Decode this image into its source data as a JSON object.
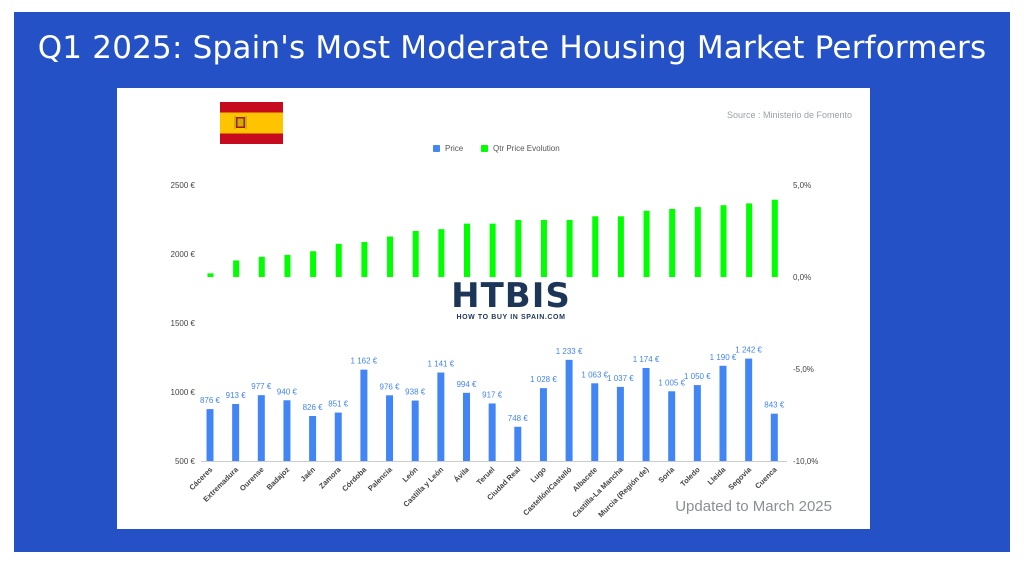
{
  "page": {
    "title": "Q1 2025: Spain's Most Moderate Housing Market Performers",
    "source": "Source : Ministerio de Fomento",
    "updated": "Updated to March 2025",
    "logo": {
      "text": "HTBIS",
      "tagline": "HOW TO BUY IN SPAIN.COM"
    },
    "colors": {
      "background": "#2452c6",
      "price": "#4285f4",
      "qtr": "#00ff00",
      "flag_red": "#c60b1e",
      "flag_yellow": "#ffc400"
    }
  },
  "chart_data": {
    "type": "bar",
    "categories": [
      "Cáceres",
      "Extremadura",
      "Ourense",
      "Badajoz",
      "Jaén",
      "Zamora",
      "Córdoba",
      "Palencia",
      "León",
      "Castilla y León",
      "Ávila",
      "Teruel",
      "Ciudad Real",
      "Lugo",
      "Castellón/Castelló",
      "Albacete",
      "Castilla-La Mancha",
      "Murcia (Región de)",
      "Soria",
      "Toledo",
      "Lleida",
      "Segovia",
      "Cuenca"
    ],
    "legend": {
      "position": "top",
      "entries": [
        "Price",
        "Qtr Price Evolution"
      ]
    },
    "series": [
      {
        "name": "Price",
        "axis": "left",
        "values": [
          876,
          913,
          977,
          940,
          826,
          851,
          1162,
          976,
          938,
          1141,
          994,
          917,
          748,
          1028,
          1233,
          1063,
          1037,
          1174,
          1005,
          1050,
          1190,
          1242,
          843
        ],
        "labels": [
          "876 €",
          "913 €",
          "977 €",
          "940 €",
          "826 €",
          "851 €",
          "1 162 €",
          "976 €",
          "938 €",
          "1 141 €",
          "994 €",
          "917 €",
          "748 €",
          "1 028 €",
          "1 233 €",
          "1 063 €",
          "1 037 €",
          "1 174 €",
          "1 005 €",
          "1 050 €",
          "1 190 €",
          "1 242 €",
          "843 €"
        ]
      },
      {
        "name": "Qtr Price Evolution",
        "axis": "right",
        "values": [
          0.2,
          0.9,
          1.1,
          1.2,
          1.4,
          1.8,
          1.9,
          2.2,
          2.5,
          2.6,
          2.9,
          2.9,
          3.1,
          3.1,
          3.1,
          3.3,
          3.3,
          3.6,
          3.7,
          3.8,
          3.9,
          4.0,
          4.2
        ]
      }
    ],
    "y_left": {
      "ylim": [
        500,
        2500
      ],
      "ticks": [
        500,
        1000,
        1500,
        2000,
        2500
      ],
      "tick_labels": [
        "500 €",
        "1000 €",
        "1500 €",
        "2000 €",
        "2500 €"
      ]
    },
    "y_right": {
      "ylim": [
        -10,
        5
      ],
      "ticks": [
        5,
        0,
        -5,
        -10
      ],
      "tick_labels": [
        "5,0%",
        "0,0%",
        "-5,0%",
        "-10,0%"
      ]
    },
    "grid": false
  }
}
